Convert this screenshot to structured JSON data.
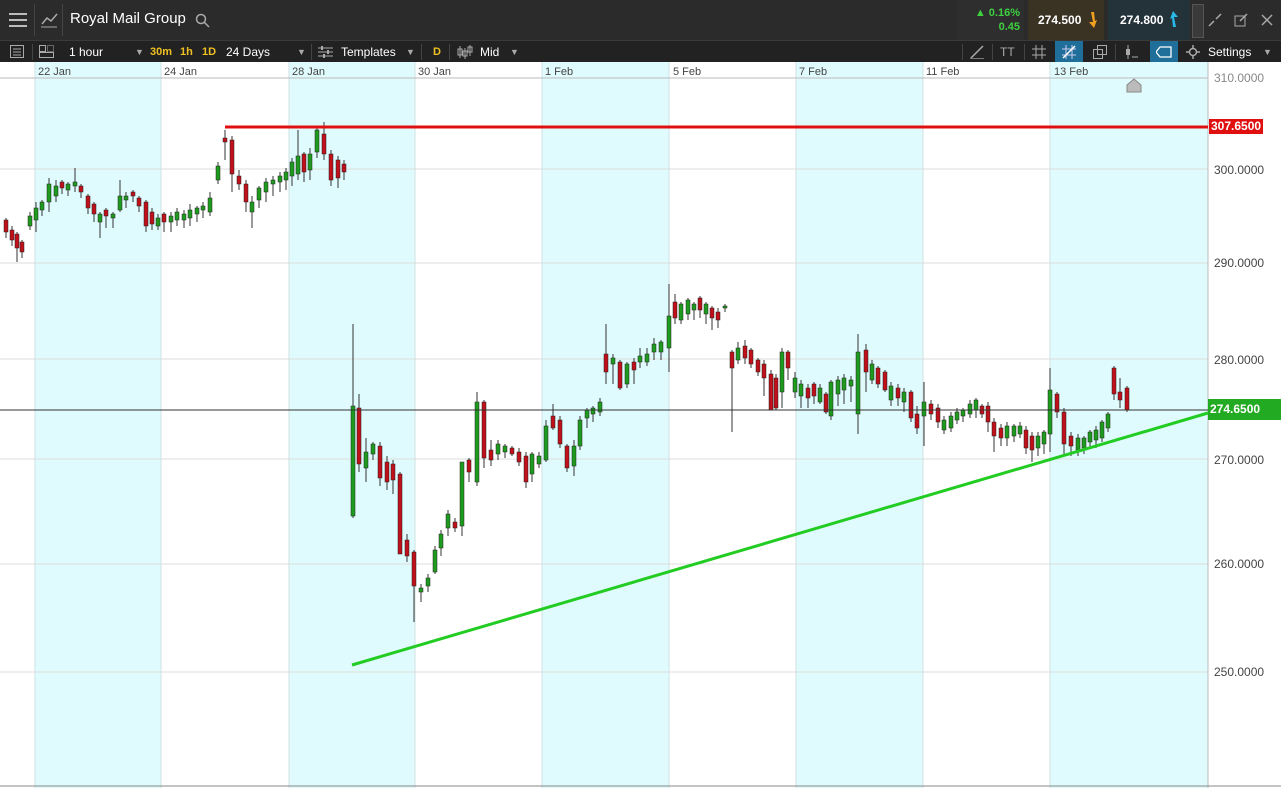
{
  "header": {
    "instrument": "Royal Mail Group",
    "change_pct": "0.16%",
    "change_abs": "0.45",
    "sell_price": "274.500",
    "buy_price": "274.800"
  },
  "toolbar": {
    "interval": "1 hour",
    "quick_30m": "30m",
    "quick_1h": "1h",
    "quick_1d": "1D",
    "range": "24 Days",
    "templates": "Templates",
    "d_badge": "D",
    "price_type": "Mid",
    "settings": "Settings",
    "tt_label": "TT"
  },
  "chart": {
    "x_labels": [
      "22 Jan",
      "24 Jan",
      "28 Jan",
      "30 Jan",
      "1 Feb",
      "5 Feb",
      "7 Feb",
      "11 Feb",
      "13 Feb"
    ],
    "y_labels": [
      "310.0000",
      "300.0000",
      "290.0000",
      "280.0000",
      "270.0000",
      "260.0000",
      "250.0000"
    ],
    "resistance_label": "307.6500",
    "current_label": "274.6500"
  },
  "colors": {
    "up": "#1e9a1e",
    "down": "#c0101a",
    "resistance": "#e01010",
    "trendline": "#22cc22",
    "shade": "#e0fbfd"
  }
}
